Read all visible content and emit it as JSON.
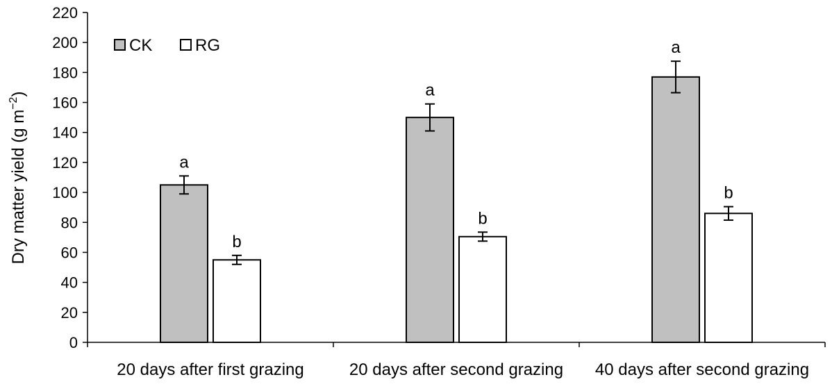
{
  "chart_data": {
    "type": "bar",
    "ylabel": "Dry matter yield (g m⁻²)",
    "ylabel_parts": {
      "base": "Dry matter yield (g m",
      "superscript": "−2",
      "tail": ")"
    },
    "ylim": [
      0,
      220
    ],
    "yticks": [
      0,
      20,
      40,
      60,
      80,
      100,
      120,
      140,
      160,
      180,
      200,
      220
    ],
    "categories": [
      "20 days after first grazing",
      "20 days after second grazing",
      "40 days after second grazing"
    ],
    "series": [
      {
        "name": "CK",
        "color": "#c0c0c0",
        "values": [
          105,
          150,
          177
        ],
        "errors": [
          6,
          9,
          10.5
        ],
        "letters": [
          "a",
          "a",
          "a"
        ]
      },
      {
        "name": "RG",
        "color": "#ffffff",
        "values": [
          55,
          70.5,
          86
        ],
        "errors": [
          3,
          3,
          4.5
        ],
        "letters": [
          "b",
          "b",
          "b"
        ]
      }
    ],
    "legend_position": "top-left",
    "grid": false
  }
}
